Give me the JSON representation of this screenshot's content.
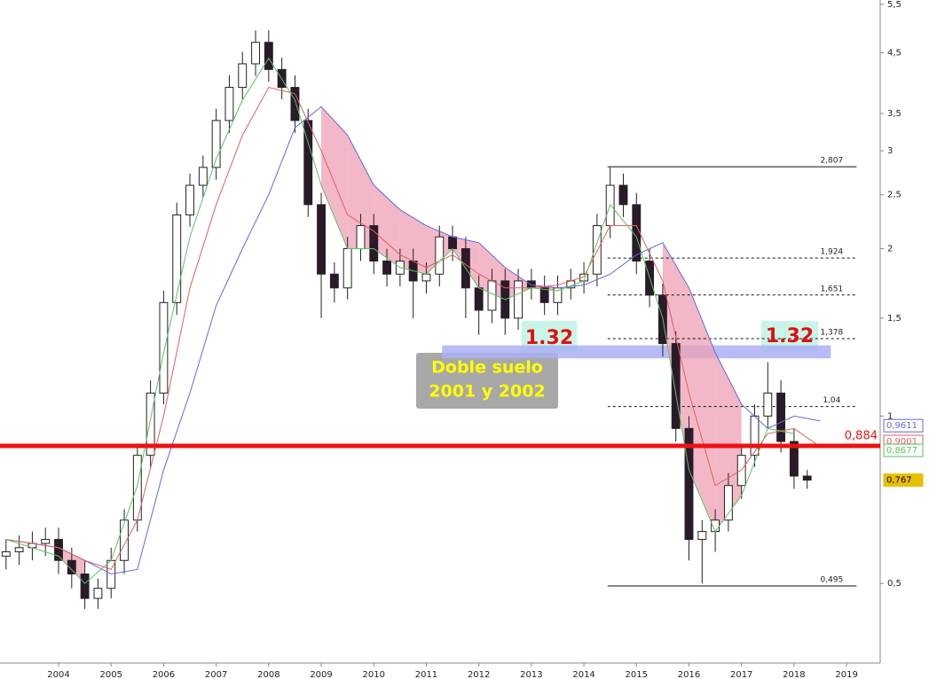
{
  "chart_data": {
    "type": "candlestick",
    "log_scale": true,
    "xlim": [
      2002.885,
      2019.64
    ],
    "ylim": [
      0.357,
      5.6
    ],
    "xticks": [
      2004,
      2005,
      2006,
      2007,
      2008,
      2009,
      2010,
      2011,
      2012,
      2013,
      2014,
      2015,
      2016,
      2017,
      2018,
      2019
    ],
    "yticks": [
      {
        "value": 5.5,
        "label": "5,5"
      },
      {
        "value": 4.5,
        "label": "4,5"
      },
      {
        "value": 3.5,
        "label": "3,5"
      },
      3,
      {
        "value": 2.5,
        "label": "2,5"
      },
      2,
      {
        "value": 1.5,
        "label": "1,5"
      },
      1,
      {
        "value": 0.5,
        "label": "0,5"
      }
    ],
    "x": [
      2003.0,
      2003.25,
      2003.5,
      2003.75,
      2004.0,
      2004.25,
      2004.5,
      2004.75,
      2005.0,
      2005.25,
      2005.5,
      2005.75,
      2006.0,
      2006.25,
      2006.5,
      2006.75,
      2007.0,
      2007.25,
      2007.5,
      2007.75,
      2008.0,
      2008.25,
      2008.5,
      2008.75,
      2009.0,
      2009.25,
      2009.5,
      2009.75,
      2010.0,
      2010.25,
      2010.5,
      2010.75,
      2011.0,
      2011.25,
      2011.5,
      2011.75,
      2012.0,
      2012.25,
      2012.5,
      2012.75,
      2013.0,
      2013.25,
      2013.5,
      2013.75,
      2014.0,
      2014.25,
      2014.5,
      2014.75,
      2015.0,
      2015.25,
      2015.5,
      2015.75,
      2016.0,
      2016.25,
      2016.5,
      2016.75,
      2017.0,
      2017.25,
      2017.5,
      2017.75,
      2018.0,
      2018.25
    ],
    "open": [
      0.56,
      0.57,
      0.58,
      0.59,
      0.6,
      0.55,
      0.52,
      0.47,
      0.49,
      0.55,
      0.65,
      0.85,
      1.1,
      1.6,
      2.3,
      2.6,
      2.8,
      3.4,
      3.9,
      4.3,
      4.7,
      4.2,
      3.9,
      3.4,
      2.4,
      1.8,
      1.7,
      2.0,
      2.2,
      1.9,
      1.8,
      1.9,
      1.75,
      1.8,
      2.1,
      2.0,
      1.7,
      1.55,
      1.75,
      1.5,
      1.75,
      1.7,
      1.6,
      1.7,
      1.75,
      1.8,
      2.2,
      2.6,
      2.4,
      1.9,
      1.65,
      1.35,
      0.95,
      0.6,
      0.62,
      0.65,
      0.75,
      0.85,
      1.0,
      1.1,
      0.9,
      0.78
    ],
    "high": [
      0.6,
      0.61,
      0.62,
      0.63,
      0.63,
      0.58,
      0.55,
      0.51,
      0.58,
      0.68,
      0.89,
      1.16,
      1.68,
      2.42,
      2.73,
      2.94,
      3.57,
      4.1,
      4.52,
      4.94,
      4.94,
      4.41,
      4.1,
      3.57,
      2.52,
      1.89,
      2.1,
      2.31,
      2.31,
      2.0,
      2.0,
      2.0,
      1.89,
      2.2,
      2.2,
      2.1,
      1.79,
      1.84,
      1.84,
      1.84,
      1.84,
      1.79,
      1.79,
      1.84,
      1.89,
      2.31,
      2.8,
      2.73,
      2.52,
      2.0,
      1.73,
      1.42,
      1.0,
      0.65,
      0.68,
      0.79,
      0.89,
      1.05,
      1.25,
      1.16,
      0.95,
      0.8
    ],
    "low": [
      0.53,
      0.54,
      0.55,
      0.56,
      0.52,
      0.49,
      0.45,
      0.45,
      0.47,
      0.52,
      0.62,
      0.81,
      1.05,
      1.52,
      2.19,
      2.47,
      2.66,
      3.23,
      3.71,
      4.09,
      3.99,
      3.71,
      3.23,
      2.28,
      1.5,
      1.6,
      1.62,
      1.9,
      1.8,
      1.71,
      1.71,
      1.5,
      1.66,
      1.71,
      1.9,
      1.5,
      1.4,
      1.47,
      1.4,
      1.43,
      1.62,
      1.52,
      1.52,
      1.62,
      1.66,
      1.71,
      2.09,
      2.28,
      1.8,
      1.57,
      1.28,
      0.9,
      0.55,
      0.5,
      0.57,
      0.62,
      0.71,
      0.81,
      0.95,
      0.86,
      0.74,
      0.74
    ],
    "close": [
      0.57,
      0.58,
      0.59,
      0.6,
      0.55,
      0.52,
      0.47,
      0.49,
      0.55,
      0.65,
      0.85,
      1.1,
      1.6,
      2.3,
      2.6,
      2.8,
      3.4,
      3.9,
      4.3,
      4.7,
      4.2,
      3.9,
      3.4,
      2.4,
      1.8,
      1.7,
      2.0,
      2.2,
      1.9,
      1.8,
      1.9,
      1.75,
      1.8,
      2.1,
      2.0,
      1.7,
      1.55,
      1.75,
      1.5,
      1.75,
      1.7,
      1.6,
      1.7,
      1.75,
      1.8,
      2.2,
      2.6,
      2.4,
      1.9,
      1.65,
      1.35,
      0.95,
      0.6,
      0.62,
      0.65,
      0.75,
      0.85,
      1.0,
      1.1,
      0.9,
      0.78,
      0.767
    ],
    "overlays": [
      {
        "color": "#6666dd",
        "x": [
          2003,
          2004,
          2004.5,
          2005,
          2005.5,
          2006,
          2006.5,
          2007,
          2007.5,
          2008,
          2008.5,
          2009,
          2009.5,
          2010,
          2010.5,
          2011,
          2011.5,
          2012,
          2012.5,
          2013,
          2013.5,
          2014,
          2014.5,
          2015,
          2015.5,
          2016,
          2016.5,
          2017,
          2017.5,
          2018,
          2018.5
        ],
        "values": [
          0.6,
          0.58,
          0.55,
          0.52,
          0.53,
          0.8,
          1.1,
          1.58,
          2.0,
          2.5,
          3.3,
          3.6,
          3.2,
          2.6,
          2.35,
          2.2,
          2.1,
          2.05,
          1.85,
          1.72,
          1.7,
          1.72,
          1.8,
          1.95,
          2.05,
          1.7,
          1.3,
          1.05,
          0.95,
          1.0,
          0.98
        ]
      },
      {
        "color": "#e06060",
        "x": [
          2003,
          2004,
          2004.5,
          2005,
          2005.5,
          2006,
          2006.5,
          2007,
          2007.5,
          2008,
          2008.5,
          2009,
          2009.5,
          2010,
          2010.5,
          2011,
          2011.5,
          2012,
          2012.5,
          2013,
          2013.5,
          2014,
          2014.5,
          2015,
          2015.5,
          2016,
          2016.5,
          2017,
          2017.5,
          2018,
          2018.5
        ],
        "values": [
          0.6,
          0.58,
          0.55,
          0.53,
          0.65,
          1.0,
          1.7,
          2.4,
          3.2,
          3.9,
          3.8,
          3.0,
          2.3,
          2.15,
          1.95,
          1.85,
          1.95,
          1.8,
          1.7,
          1.7,
          1.72,
          1.78,
          2.2,
          2.2,
          1.75,
          1.1,
          0.75,
          0.8,
          0.93,
          0.95,
          0.88
        ]
      },
      {
        "color": "#60c060",
        "x": [
          2003,
          2004,
          2004.5,
          2005,
          2005.5,
          2006,
          2006.5,
          2007,
          2007.5,
          2008,
          2008.5,
          2009,
          2009.5,
          2010,
          2010.5,
          2011,
          2011.5,
          2012,
          2012.5,
          2013,
          2013.5,
          2014,
          2014.5,
          2015,
          2015.5,
          2016,
          2016.5,
          2017,
          2017.5,
          2018,
          2018.5
        ],
        "values": [
          0.6,
          0.56,
          0.5,
          0.55,
          0.75,
          1.3,
          2.1,
          2.9,
          3.7,
          4.4,
          3.7,
          2.6,
          2.0,
          2.0,
          1.85,
          1.8,
          2.0,
          1.7,
          1.62,
          1.7,
          1.68,
          1.75,
          2.4,
          2.1,
          1.5,
          0.8,
          0.62,
          0.72,
          0.95,
          0.93,
          null
        ]
      }
    ],
    "fib_range": [
      2014.45,
      2019.19
    ],
    "fib_levels": [
      {
        "value": 2.807,
        "label": "2,807",
        "solid": true
      },
      {
        "value": 1.924,
        "label": "1,924",
        "solid": false
      },
      {
        "value": 1.651,
        "label": "1,651",
        "solid": false
      },
      {
        "value": 1.378,
        "label": "1,378",
        "solid": false
      },
      {
        "value": 1.04,
        "label": "1,04",
        "solid": false
      },
      {
        "value": 0.495,
        "label": "0,495",
        "solid": true
      }
    ],
    "support_line": {
      "value": 0.884,
      "label": "0,884",
      "color": "#ee1111"
    },
    "band": {
      "range": [
        1.27,
        1.34
      ],
      "x": [
        2011.3,
        2018.7
      ],
      "color": "#aab0f5"
    },
    "annotations": [
      "1.32",
      "1.32",
      "Doble suelo",
      "2001 y 2002"
    ],
    "last_values": [
      {
        "value": 0.9611,
        "label": "0,9611",
        "color": "#6666dd"
      },
      {
        "value": 0.9001,
        "label": "0,9001",
        "color": "#e06060"
      },
      {
        "value": 0.8677,
        "label": "0,8677",
        "color": "#60c060"
      },
      {
        "value": 0.767,
        "label": "0,767",
        "color": "#e8c000"
      }
    ]
  }
}
